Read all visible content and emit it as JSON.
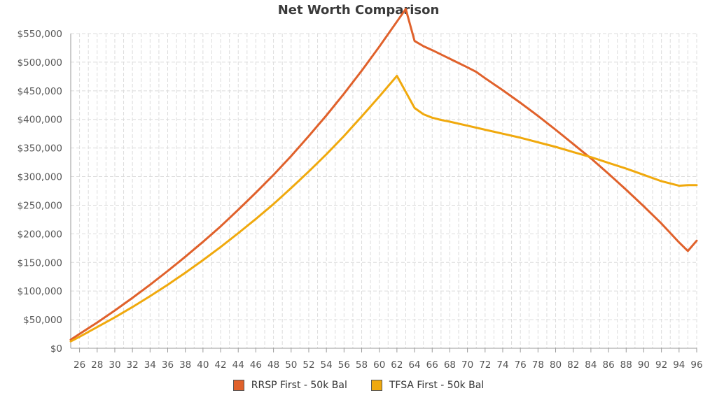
{
  "chart_data": {
    "type": "line",
    "title": "Net Worth Comparison",
    "xlabel": "",
    "ylabel": "",
    "xlim": [
      25,
      96
    ],
    "ylim": [
      0,
      550000
    ],
    "grid": true,
    "legend_position": "bottom",
    "x_ticks": [
      26,
      28,
      30,
      32,
      34,
      36,
      38,
      40,
      42,
      44,
      46,
      48,
      50,
      52,
      54,
      56,
      58,
      60,
      62,
      64,
      66,
      68,
      70,
      72,
      74,
      76,
      78,
      80,
      82,
      84,
      86,
      88,
      90,
      92,
      94,
      96
    ],
    "y_ticks": [
      0,
      50000,
      100000,
      150000,
      200000,
      250000,
      300000,
      350000,
      400000,
      450000,
      500000,
      550000
    ],
    "y_tick_labels": [
      "$0",
      "$50,000",
      "$100,000",
      "$150,000",
      "$200,000",
      "$250,000",
      "$300,000",
      "$350,000",
      "$400,000",
      "$450,000",
      "$500,000",
      "$550,000"
    ],
    "series": [
      {
        "name": "RRSP First - 50k Bal",
        "color": "#e0612b",
        "points": [
          [
            25,
            15000
          ],
          [
            26,
            25000
          ],
          [
            28,
            45000
          ],
          [
            30,
            66000
          ],
          [
            32,
            88000
          ],
          [
            34,
            111000
          ],
          [
            36,
            135000
          ],
          [
            38,
            160000
          ],
          [
            40,
            186000
          ],
          [
            42,
            213000
          ],
          [
            44,
            242000
          ],
          [
            46,
            272000
          ],
          [
            48,
            303000
          ],
          [
            50,
            336000
          ],
          [
            52,
            371000
          ],
          [
            54,
            407000
          ],
          [
            56,
            445000
          ],
          [
            58,
            485000
          ],
          [
            60,
            527000
          ],
          [
            62,
            571000
          ],
          [
            63,
            593000
          ],
          [
            64,
            537000
          ],
          [
            65,
            528000
          ],
          [
            66,
            521000
          ],
          [
            68,
            506000
          ],
          [
            70,
            491000
          ],
          [
            71,
            483000
          ],
          [
            72,
            472000
          ],
          [
            74,
            451000
          ],
          [
            76,
            429000
          ],
          [
            78,
            406000
          ],
          [
            80,
            382000
          ],
          [
            82,
            357000
          ],
          [
            84,
            332000
          ],
          [
            86,
            305000
          ],
          [
            88,
            277000
          ],
          [
            90,
            248000
          ],
          [
            92,
            218000
          ],
          [
            94,
            185000
          ],
          [
            95,
            170000
          ],
          [
            96,
            188000
          ]
        ]
      },
      {
        "name": "TFSA First - 50k Bal",
        "color": "#f0a90d",
        "points": [
          [
            25,
            12000
          ],
          [
            26,
            20000
          ],
          [
            28,
            37000
          ],
          [
            30,
            54000
          ],
          [
            32,
            72000
          ],
          [
            34,
            91000
          ],
          [
            36,
            111000
          ],
          [
            38,
            132000
          ],
          [
            40,
            154000
          ],
          [
            42,
            177000
          ],
          [
            44,
            201000
          ],
          [
            46,
            226000
          ],
          [
            48,
            252000
          ],
          [
            50,
            280000
          ],
          [
            52,
            309000
          ],
          [
            54,
            339000
          ],
          [
            56,
            371000
          ],
          [
            58,
            405000
          ],
          [
            60,
            440000
          ],
          [
            62,
            476000
          ],
          [
            64,
            420000
          ],
          [
            65,
            409000
          ],
          [
            66,
            403000
          ],
          [
            67,
            399000
          ],
          [
            68,
            396000
          ],
          [
            70,
            389000
          ],
          [
            72,
            382000
          ],
          [
            74,
            375000
          ],
          [
            76,
            368000
          ],
          [
            78,
            360000
          ],
          [
            80,
            352000
          ],
          [
            82,
            343000
          ],
          [
            84,
            334000
          ],
          [
            86,
            324000
          ],
          [
            88,
            314000
          ],
          [
            90,
            303000
          ],
          [
            92,
            292000
          ],
          [
            94,
            284000
          ],
          [
            95,
            285000
          ],
          [
            96,
            285000
          ]
        ]
      }
    ]
  }
}
